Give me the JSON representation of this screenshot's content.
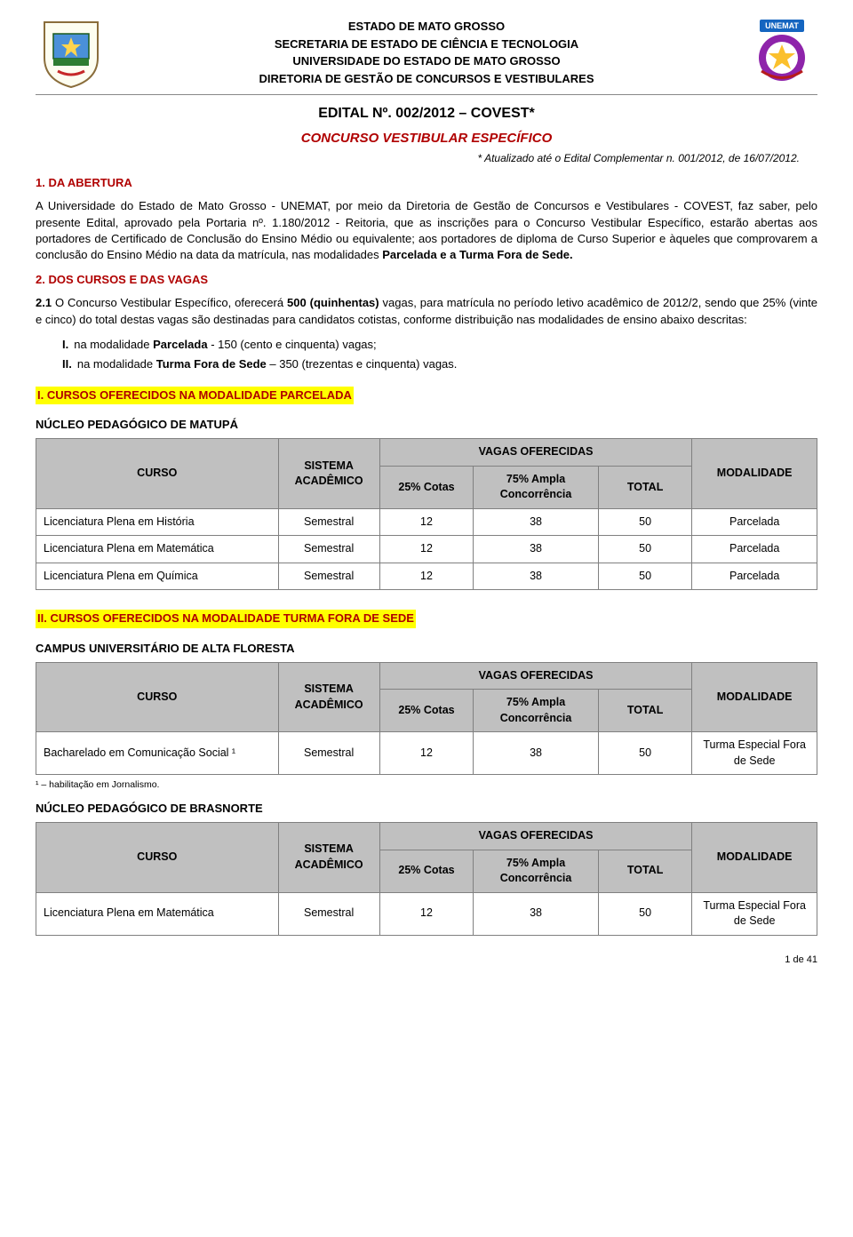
{
  "header": {
    "line1": "ESTADO DE MATO GROSSO",
    "line2": "SECRETARIA DE ESTADO DE CIÊNCIA E TECNOLOGIA",
    "line3": "UNIVERSIDADE DO ESTADO DE MATO GROSSO",
    "line4": "DIRETORIA DE GESTÃO DE CONCURSOS E VESTIBULARES"
  },
  "edital_title": "EDITAL Nº. 002/2012 – COVEST*",
  "concurso_title": "CONCURSO VESTIBULAR ESPECÍFICO",
  "atualizado": "* Atualizado até o Edital Complementar n. 001/2012, de 16/07/2012.",
  "section1_title": "1. DA ABERTURA",
  "section1_body_prefix": "A Universidade do Estado de Mato Grosso - UNEMAT, por meio da Diretoria de Gestão de Concursos e Vestibulares - COVEST, faz saber, pelo presente Edital, aprovado pela Portaria nº. 1.180/2012 - Reitoria, que as inscrições para o Concurso Vestibular Específico, estarão abertas aos portadores de Certificado de Conclusão do Ensino Médio ou equivalente; aos portadores de diploma de Curso Superior e àqueles que comprovarem a conclusão do Ensino Médio na data da matrícula, nas modalidades ",
  "section1_body_bold": "Parcelada e a Turma Fora de Sede.",
  "section2_title": "2. DOS CURSOS E DAS VAGAS",
  "section21_prefix": "2.1",
  "section21_body_a": " O Concurso Vestibular Específico, oferecerá ",
  "section21_body_b": "500 (quinhentas)",
  "section21_body_c": " vagas, para matrícula no período letivo acadêmico de 2012/2, sendo que 25% (vinte e cinco) do total destas vagas são destinadas para candidatos cotistas, conforme distribuição nas modalidades de ensino abaixo descritas:",
  "list_i_label": "I.",
  "list_i_body_a": "na modalidade ",
  "list_i_body_b": "Parcelada",
  "list_i_body_c": " - 150 (cento e cinquenta) vagas;",
  "list_ii_label": "II.",
  "list_ii_body_a": "na modalidade ",
  "list_ii_body_b": "Turma Fora de Sede",
  "list_ii_body_c": " – 350 (trezentas e cinquenta) vagas.",
  "hl_parcelada": "I. CURSOS OFERECIDOS NA MODALIDADE PARCELADA",
  "nucleo_matupa": "NÚCLEO PEDAGÓGICO DE MATUPÁ",
  "hl_fora_sede": "II. CURSOS OFERECIDOS NA MODALIDADE TURMA FORA DE SEDE",
  "campus_alta_floresta": "CAMPUS UNIVERSITÁRIO DE ALTA FLORESTA",
  "footnote_alta_floresta": "¹ – habilitação em Jornalismo.",
  "nucleo_brasnorte": "NÚCLEO PEDAGÓGICO DE BRASNORTE",
  "table_headers": {
    "curso": "CURSO",
    "sistema": "SISTEMA ACADÊMICO",
    "vagas_oferecidas": "VAGAS OFERECIDAS",
    "cotas": "25% Cotas",
    "ampla": "75% Ampla Concorrência",
    "total": "TOTAL",
    "modalidade": "MODALIDADE"
  },
  "table_matupa": {
    "rows": [
      {
        "curso": "Licenciatura Plena em História",
        "sistema": "Semestral",
        "cotas": "12",
        "ampla": "38",
        "total": "50",
        "modalidade": "Parcelada"
      },
      {
        "curso": "Licenciatura Plena em Matemática",
        "sistema": "Semestral",
        "cotas": "12",
        "ampla": "38",
        "total": "50",
        "modalidade": "Parcelada"
      },
      {
        "curso": "Licenciatura Plena em Química",
        "sistema": "Semestral",
        "cotas": "12",
        "ampla": "38",
        "total": "50",
        "modalidade": "Parcelada"
      }
    ]
  },
  "table_alta_floresta": {
    "rows": [
      {
        "curso": "Bacharelado em Comunicação Social ¹",
        "sistema": "Semestral",
        "cotas": "12",
        "ampla": "38",
        "total": "50",
        "modalidade": "Turma Especial Fora de Sede"
      }
    ]
  },
  "table_brasnorte": {
    "rows": [
      {
        "curso": "Licenciatura Plena em Matemática",
        "sistema": "Semestral",
        "cotas": "12",
        "ampla": "38",
        "total": "50",
        "modalidade": "Turma Especial Fora de Sede"
      }
    ]
  },
  "page_num": "1 de 41",
  "colors": {
    "red": "#b00000",
    "highlight": "#ffff00",
    "table_header_bg": "#c0c0c0",
    "border": "#808080"
  }
}
